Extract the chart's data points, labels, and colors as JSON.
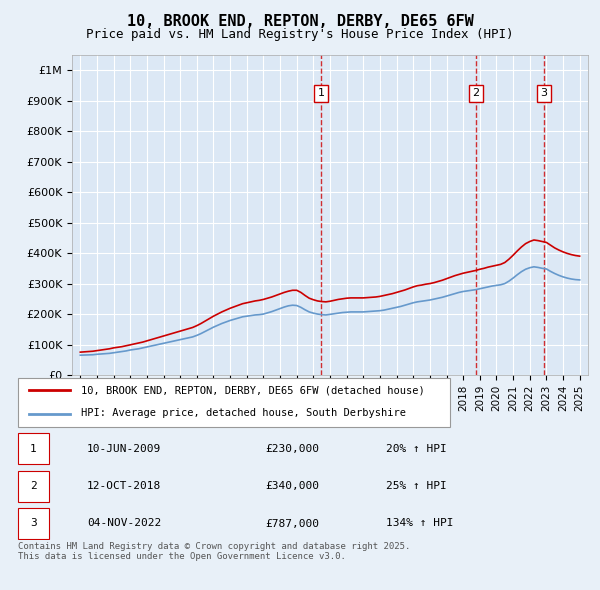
{
  "title": "10, BROOK END, REPTON, DERBY, DE65 6FW",
  "subtitle": "Price paid vs. HM Land Registry's House Price Index (HPI)",
  "bg_color": "#e8f0f8",
  "plot_bg_color": "#dce8f5",
  "legend_line1": "10, BROOK END, REPTON, DERBY, DE65 6FW (detached house)",
  "legend_line2": "HPI: Average price, detached house, South Derbyshire",
  "transactions": [
    {
      "num": 1,
      "date": "10-JUN-2009",
      "price": "£230,000",
      "change": "20% ↑ HPI",
      "year": 2009.45
    },
    {
      "num": 2,
      "date": "12-OCT-2018",
      "price": "£340,000",
      "change": "25% ↑ HPI",
      "year": 2018.78
    },
    {
      "num": 3,
      "date": "04-NOV-2022",
      "price": "£787,000",
      "change": "134% ↑ HPI",
      "year": 2022.84
    }
  ],
  "footer": "Contains HM Land Registry data © Crown copyright and database right 2025.\nThis data is licensed under the Open Government Licence v3.0.",
  "ylim": [
    0,
    1050000
  ],
  "yticks": [
    0,
    100000,
    200000,
    300000,
    400000,
    500000,
    600000,
    700000,
    800000,
    900000,
    1000000
  ],
  "ytick_labels": [
    "£0",
    "£100K",
    "£200K",
    "£300K",
    "£400K",
    "£500K",
    "£600K",
    "£700K",
    "£800K",
    "£900K",
    "£1M"
  ],
  "xlim_start": 1994.5,
  "xlim_end": 2025.5,
  "xticks": [
    1995,
    1996,
    1997,
    1998,
    1999,
    2000,
    2001,
    2002,
    2003,
    2004,
    2005,
    2006,
    2007,
    2008,
    2009,
    2010,
    2011,
    2012,
    2013,
    2014,
    2015,
    2016,
    2017,
    2018,
    2019,
    2020,
    2021,
    2022,
    2023,
    2024,
    2025
  ],
  "hpi_color": "#6699cc",
  "price_color": "#cc0000",
  "vline_color": "#cc0000",
  "hpi_x": [
    1995.0,
    1995.25,
    1995.5,
    1995.75,
    1996.0,
    1996.25,
    1996.5,
    1996.75,
    1997.0,
    1997.25,
    1997.5,
    1997.75,
    1998.0,
    1998.25,
    1998.5,
    1998.75,
    1999.0,
    1999.25,
    1999.5,
    1999.75,
    2000.0,
    2000.25,
    2000.5,
    2000.75,
    2001.0,
    2001.25,
    2001.5,
    2001.75,
    2002.0,
    2002.25,
    2002.5,
    2002.75,
    2003.0,
    2003.25,
    2003.5,
    2003.75,
    2004.0,
    2004.25,
    2004.5,
    2004.75,
    2005.0,
    2005.25,
    2005.5,
    2005.75,
    2006.0,
    2006.25,
    2006.5,
    2006.75,
    2007.0,
    2007.25,
    2007.5,
    2007.75,
    2008.0,
    2008.25,
    2008.5,
    2008.75,
    2009.0,
    2009.25,
    2009.5,
    2009.75,
    2010.0,
    2010.25,
    2010.5,
    2010.75,
    2011.0,
    2011.25,
    2011.5,
    2011.75,
    2012.0,
    2012.25,
    2012.5,
    2012.75,
    2013.0,
    2013.25,
    2013.5,
    2013.75,
    2014.0,
    2014.25,
    2014.5,
    2014.75,
    2015.0,
    2015.25,
    2015.5,
    2015.75,
    2016.0,
    2016.25,
    2016.5,
    2016.75,
    2017.0,
    2017.25,
    2017.5,
    2017.75,
    2018.0,
    2018.25,
    2018.5,
    2018.75,
    2019.0,
    2019.25,
    2019.5,
    2019.75,
    2020.0,
    2020.25,
    2020.5,
    2020.75,
    2021.0,
    2021.25,
    2021.5,
    2021.75,
    2022.0,
    2022.25,
    2022.5,
    2022.75,
    2023.0,
    2023.25,
    2023.5,
    2023.75,
    2024.0,
    2024.25,
    2024.5,
    2024.75,
    2025.0
  ],
  "hpi_y": [
    65000,
    65500,
    66000,
    66500,
    68000,
    69000,
    70000,
    71000,
    73000,
    75000,
    77000,
    79000,
    82000,
    84000,
    86000,
    89000,
    92000,
    95000,
    98000,
    101000,
    104000,
    107000,
    110000,
    113000,
    116000,
    119000,
    122000,
    125000,
    130000,
    136000,
    143000,
    150000,
    157000,
    163000,
    169000,
    174000,
    179000,
    183000,
    187000,
    191000,
    193000,
    195000,
    197000,
    198000,
    200000,
    204000,
    208000,
    213000,
    218000,
    223000,
    227000,
    229000,
    228000,
    222000,
    214000,
    207000,
    203000,
    200000,
    198000,
    197000,
    199000,
    201000,
    203000,
    205000,
    206000,
    207000,
    207000,
    207000,
    207000,
    208000,
    209000,
    210000,
    211000,
    213000,
    216000,
    219000,
    222000,
    225000,
    229000,
    233000,
    237000,
    240000,
    242000,
    244000,
    246000,
    249000,
    252000,
    255000,
    259000,
    263000,
    267000,
    271000,
    274000,
    276000,
    278000,
    280000,
    283000,
    286000,
    289000,
    292000,
    294000,
    296000,
    300000,
    308000,
    318000,
    329000,
    339000,
    347000,
    352000,
    355000,
    353000,
    350000,
    348000,
    340000,
    333000,
    327000,
    322000,
    318000,
    315000,
    313000,
    312000
  ],
  "price_x": [
    1995.0,
    1995.25,
    1995.5,
    1995.75,
    1996.0,
    1996.25,
    1996.5,
    1996.75,
    1997.0,
    1997.25,
    1997.5,
    1997.75,
    1998.0,
    1998.25,
    1998.5,
    1998.75,
    1999.0,
    1999.25,
    1999.5,
    1999.75,
    2000.0,
    2000.25,
    2000.5,
    2000.75,
    2001.0,
    2001.25,
    2001.5,
    2001.75,
    2002.0,
    2002.25,
    2002.5,
    2002.75,
    2003.0,
    2003.25,
    2003.5,
    2003.75,
    2004.0,
    2004.25,
    2004.5,
    2004.75,
    2005.0,
    2005.25,
    2005.5,
    2005.75,
    2006.0,
    2006.25,
    2006.5,
    2006.75,
    2007.0,
    2007.25,
    2007.5,
    2007.75,
    2008.0,
    2008.25,
    2008.5,
    2008.75,
    2009.0,
    2009.25,
    2009.5,
    2009.75,
    2010.0,
    2010.25,
    2010.5,
    2010.75,
    2011.0,
    2011.25,
    2011.5,
    2011.75,
    2012.0,
    2012.25,
    2012.5,
    2012.75,
    2013.0,
    2013.25,
    2013.5,
    2013.75,
    2014.0,
    2014.25,
    2014.5,
    2014.75,
    2015.0,
    2015.25,
    2015.5,
    2015.75,
    2016.0,
    2016.25,
    2016.5,
    2016.75,
    2017.0,
    2017.25,
    2017.5,
    2017.75,
    2018.0,
    2018.25,
    2018.5,
    2018.75,
    2019.0,
    2019.25,
    2019.5,
    2019.75,
    2020.0,
    2020.25,
    2020.5,
    2020.75,
    2021.0,
    2021.25,
    2021.5,
    2021.75,
    2022.0,
    2022.25,
    2022.5,
    2022.75,
    2023.0,
    2023.25,
    2023.5,
    2023.75,
    2024.0,
    2024.25,
    2024.5,
    2024.75,
    2025.0
  ],
  "price_y": [
    75000,
    76000,
    77000,
    78000,
    80000,
    82000,
    84000,
    86000,
    89000,
    91000,
    93000,
    96000,
    99000,
    102000,
    105000,
    108000,
    112000,
    116000,
    120000,
    124000,
    128000,
    132000,
    136000,
    140000,
    144000,
    148000,
    152000,
    156000,
    162000,
    169000,
    177000,
    185000,
    193000,
    200000,
    207000,
    213000,
    219000,
    224000,
    229000,
    234000,
    237000,
    240000,
    243000,
    245000,
    248000,
    252000,
    256000,
    261000,
    266000,
    271000,
    275000,
    278000,
    278000,
    271000,
    261000,
    252000,
    247000,
    243000,
    241000,
    240000,
    242000,
    245000,
    248000,
    250000,
    252000,
    253000,
    253000,
    253000,
    253000,
    254000,
    255000,
    256000,
    258000,
    261000,
    264000,
    267000,
    271000,
    275000,
    279000,
    284000,
    289000,
    293000,
    295000,
    298000,
    300000,
    303000,
    307000,
    311000,
    316000,
    321000,
    326000,
    330000,
    334000,
    337000,
    340000,
    343000,
    347000,
    350000,
    354000,
    357000,
    360000,
    363000,
    369000,
    380000,
    393000,
    407000,
    420000,
    431000,
    438000,
    443000,
    441000,
    438000,
    435000,
    426000,
    417000,
    410000,
    404000,
    399000,
    395000,
    392000,
    390000
  ]
}
